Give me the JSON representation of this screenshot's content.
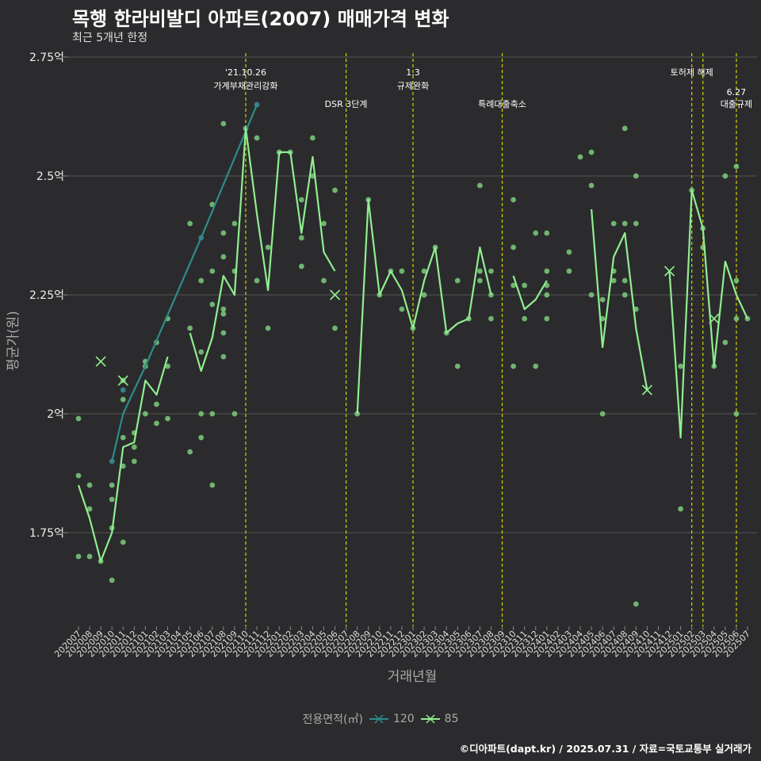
{
  "title": "목행 한라비발디 아파트(2007) 매매가격 변화",
  "subtitle": "최근 5개년 한정",
  "credit": "©디아파트(dapt.kr) / 2025.07.31 / 자료=국토교통부 실거래가",
  "colors": {
    "background": "#2b2b2d",
    "grid": "#555555",
    "vline": "#d4d400",
    "s85": "#90ee90",
    "s120": "#2e8b8b",
    "text": "#ffffff",
    "muted": "#aaaaaa"
  },
  "chart_data": {
    "type": "line",
    "title": "목행 한라비발디 아파트(2007) 매매가격 변화",
    "subtitle": "최근 5개년 한정",
    "xlabel": "거래년월",
    "ylabel": "평균가(원)",
    "ylim": [
      1.55,
      2.77
    ],
    "y_ticks": [
      1.75,
      2.0,
      2.25,
      2.5,
      2.75
    ],
    "y_tick_labels": [
      "1.75억",
      "2억",
      "2.25억",
      "2.5억",
      "2.75억"
    ],
    "grid": true,
    "legend_position": "bottom",
    "legend_title": "전용면적(㎡)",
    "categories": [
      "202007",
      "202008",
      "202009",
      "202010",
      "202011",
      "202012",
      "202101",
      "202102",
      "202103",
      "202104",
      "202105",
      "202106",
      "202107",
      "202108",
      "202109",
      "202110",
      "202111",
      "202112",
      "202201",
      "202202",
      "202203",
      "202204",
      "202205",
      "202206",
      "202207",
      "202208",
      "202209",
      "202210",
      "202211",
      "202212",
      "202301",
      "202302",
      "202303",
      "202304",
      "202305",
      "202306",
      "202307",
      "202308",
      "202309",
      "202310",
      "202311",
      "202312",
      "202401",
      "202402",
      "202403",
      "202404",
      "202405",
      "202406",
      "202407",
      "202408",
      "202409",
      "202410",
      "202411",
      "202412",
      "202501",
      "202502",
      "202503",
      "202504",
      "202505",
      "202506",
      "202507"
    ],
    "series": [
      {
        "name": "120",
        "color": "#2e8b8b",
        "line": [
          [
            "202010",
            1.9
          ],
          [
            "202011",
            2.0
          ],
          [
            "202012",
            2.05
          ],
          [
            "202101",
            2.1
          ],
          [
            "202106",
            2.37
          ],
          [
            "202111",
            2.65
          ]
        ],
        "points": [
          [
            "202010",
            1.9
          ],
          [
            "202011",
            2.05
          ],
          [
            "202106",
            2.37
          ],
          [
            "202111",
            2.65
          ]
        ],
        "single_markers": []
      },
      {
        "name": "85",
        "color": "#90ee90",
        "line_segments": [
          [
            [
              "202007",
              1.85
            ],
            [
              "202008",
              1.78
            ],
            [
              "202009",
              1.69
            ],
            [
              "202010",
              1.75
            ],
            [
              "202011",
              1.93
            ],
            [
              "202012",
              1.94
            ],
            [
              "202101",
              2.07
            ],
            [
              "202102",
              2.04
            ],
            [
              "202103",
              2.12
            ]
          ],
          [
            [
              "202105",
              2.17
            ],
            [
              "202106",
              2.09
            ],
            [
              "202107",
              2.16
            ],
            [
              "202108",
              2.29
            ],
            [
              "202109",
              2.25
            ],
            [
              "202110",
              2.6
            ],
            [
              "202111",
              2.42
            ],
            [
              "202112",
              2.26
            ],
            [
              "202201",
              2.55
            ],
            [
              "202202",
              2.55
            ],
            [
              "202203",
              2.38
            ],
            [
              "202204",
              2.54
            ],
            [
              "202205",
              2.34
            ],
            [
              "202206",
              2.3
            ]
          ],
          [
            [
              "202208",
              2.0
            ],
            [
              "202209",
              2.45
            ],
            [
              "202210",
              2.25
            ],
            [
              "202211",
              2.3
            ],
            [
              "202212",
              2.26
            ],
            [
              "202301",
              2.18
            ],
            [
              "202302",
              2.28
            ],
            [
              "202303",
              2.35
            ],
            [
              "202304",
              2.17
            ],
            [
              "202305",
              2.19
            ],
            [
              "202306",
              2.2
            ],
            [
              "202307",
              2.35
            ],
            [
              "202308",
              2.25
            ]
          ],
          [
            [
              "202310",
              2.29
            ],
            [
              "202311",
              2.22
            ],
            [
              "202312",
              2.24
            ],
            [
              "202401",
              2.28
            ]
          ],
          [
            [
              "202405",
              2.43
            ],
            [
              "202406",
              2.14
            ],
            [
              "202407",
              2.33
            ],
            [
              "202408",
              2.38
            ],
            [
              "202409",
              2.18
            ],
            [
              "202410",
              2.05
            ]
          ],
          [
            [
              "202412",
              2.3
            ],
            [
              "202501",
              1.95
            ],
            [
              "202502",
              2.47
            ],
            [
              "202503",
              2.39
            ],
            [
              "202504",
              2.1
            ],
            [
              "202505",
              2.32
            ],
            [
              "202506",
              2.25
            ],
            [
              "202507",
              2.2
            ]
          ]
        ],
        "points": [
          [
            "202007",
            1.99
          ],
          [
            "202007",
            1.87
          ],
          [
            "202007",
            1.7
          ],
          [
            "202008",
            1.85
          ],
          [
            "202008",
            1.8
          ],
          [
            "202008",
            1.7
          ],
          [
            "202009",
            1.69
          ],
          [
            "202010",
            1.85
          ],
          [
            "202010",
            1.82
          ],
          [
            "202010",
            1.76
          ],
          [
            "202010",
            1.65
          ],
          [
            "202011",
            1.95
          ],
          [
            "202011",
            2.07
          ],
          [
            "202011",
            2.03
          ],
          [
            "202011",
            1.89
          ],
          [
            "202011",
            1.73
          ],
          [
            "202012",
            1.96
          ],
          [
            "202012",
            1.93
          ],
          [
            "202012",
            1.9
          ],
          [
            "202101",
            2.11
          ],
          [
            "202101",
            2.1
          ],
          [
            "202101",
            2.0
          ],
          [
            "202102",
            2.15
          ],
          [
            "202102",
            2.02
          ],
          [
            "202102",
            1.98
          ],
          [
            "202103",
            2.2
          ],
          [
            "202103",
            2.1
          ],
          [
            "202103",
            1.99
          ],
          [
            "202105",
            2.4
          ],
          [
            "202105",
            2.18
          ],
          [
            "202105",
            1.92
          ],
          [
            "202106",
            2.28
          ],
          [
            "202106",
            2.13
          ],
          [
            "202106",
            2.0
          ],
          [
            "202106",
            1.95
          ],
          [
            "202107",
            2.44
          ],
          [
            "202107",
            2.3
          ],
          [
            "202107",
            2.23
          ],
          [
            "202107",
            2.0
          ],
          [
            "202107",
            1.85
          ],
          [
            "202108",
            2.61
          ],
          [
            "202108",
            2.38
          ],
          [
            "202108",
            2.33
          ],
          [
            "202108",
            2.22
          ],
          [
            "202108",
            2.21
          ],
          [
            "202108",
            2.17
          ],
          [
            "202108",
            2.12
          ],
          [
            "202109",
            2.4
          ],
          [
            "202109",
            2.3
          ],
          [
            "202109",
            2.0
          ],
          [
            "202110",
            2.6
          ],
          [
            "202111",
            2.58
          ],
          [
            "202111",
            2.28
          ],
          [
            "202112",
            2.35
          ],
          [
            "202112",
            2.18
          ],
          [
            "202201",
            2.55
          ],
          [
            "202202",
            2.55
          ],
          [
            "202203",
            2.45
          ],
          [
            "202203",
            2.37
          ],
          [
            "202203",
            2.31
          ],
          [
            "202204",
            2.58
          ],
          [
            "202204",
            2.5
          ],
          [
            "202205",
            2.4
          ],
          [
            "202205",
            2.28
          ],
          [
            "202206",
            2.47
          ],
          [
            "202206",
            2.18
          ],
          [
            "202208",
            2.0
          ],
          [
            "202209",
            2.45
          ],
          [
            "202210",
            2.25
          ],
          [
            "202211",
            2.3
          ],
          [
            "202212",
            2.3
          ],
          [
            "202212",
            2.22
          ],
          [
            "202301",
            2.18
          ],
          [
            "202302",
            2.3
          ],
          [
            "202302",
            2.25
          ],
          [
            "202303",
            2.35
          ],
          [
            "202304",
            2.17
          ],
          [
            "202305",
            2.28
          ],
          [
            "202305",
            2.1
          ],
          [
            "202306",
            2.2
          ],
          [
            "202307",
            2.48
          ],
          [
            "202307",
            2.3
          ],
          [
            "202307",
            2.28
          ],
          [
            "202308",
            2.3
          ],
          [
            "202308",
            2.25
          ],
          [
            "202308",
            2.2
          ],
          [
            "202310",
            2.45
          ],
          [
            "202310",
            2.35
          ],
          [
            "202310",
            2.27
          ],
          [
            "202310",
            2.1
          ],
          [
            "202311",
            2.27
          ],
          [
            "202311",
            2.2
          ],
          [
            "202312",
            2.38
          ],
          [
            "202312",
            2.1
          ],
          [
            "202401",
            2.38
          ],
          [
            "202401",
            2.3
          ],
          [
            "202401",
            2.27
          ],
          [
            "202401",
            2.25
          ],
          [
            "202401",
            2.2
          ],
          [
            "202403",
            2.34
          ],
          [
            "202403",
            2.3
          ],
          [
            "202404",
            2.54
          ],
          [
            "202405",
            2.55
          ],
          [
            "202405",
            2.48
          ],
          [
            "202405",
            2.25
          ],
          [
            "202406",
            2.24
          ],
          [
            "202406",
            2.2
          ],
          [
            "202406",
            2.0
          ],
          [
            "202407",
            2.4
          ],
          [
            "202407",
            2.3
          ],
          [
            "202407",
            2.28
          ],
          [
            "202408",
            2.6
          ],
          [
            "202408",
            2.4
          ],
          [
            "202408",
            2.28
          ],
          [
            "202408",
            2.25
          ],
          [
            "202409",
            2.5
          ],
          [
            "202409",
            2.4
          ],
          [
            "202409",
            2.22
          ],
          [
            "202409",
            1.6
          ],
          [
            "202501",
            2.1
          ],
          [
            "202501",
            1.8
          ],
          [
            "202502",
            2.47
          ],
          [
            "202503",
            2.39
          ],
          [
            "202503",
            2.35
          ],
          [
            "202504",
            2.1
          ],
          [
            "202505",
            2.5
          ],
          [
            "202505",
            2.15
          ],
          [
            "202506",
            2.52
          ],
          [
            "202506",
            2.28
          ],
          [
            "202506",
            2.2
          ],
          [
            "202506",
            2.0
          ],
          [
            "202507",
            2.2
          ]
        ],
        "single_markers": [
          [
            "202009",
            2.11
          ],
          [
            "202011",
            2.07
          ],
          [
            "202206",
            2.25
          ],
          [
            "202410",
            2.05
          ],
          [
            "202412",
            2.3
          ],
          [
            "202504",
            2.2
          ]
        ]
      }
    ],
    "events": [
      {
        "x": "202110",
        "lines": [
          "'21.10.26",
          "가계부채관리강화"
        ],
        "level": 1
      },
      {
        "x": "202207",
        "lines": [
          "DSR 3단계"
        ],
        "level": 2
      },
      {
        "x": "202301",
        "lines": [
          "1.3",
          "규제완화"
        ],
        "level": 1
      },
      {
        "x": "202309",
        "lines": [
          "특례대출축소"
        ],
        "level": 2
      },
      {
        "x": "202502",
        "lines": [
          "토허제 해제"
        ],
        "level": 1
      },
      {
        "x": "202503",
        "lines": [],
        "level": 0
      },
      {
        "x": "202506",
        "lines": [
          "6.27",
          "대출규제"
        ],
        "level": 2
      }
    ]
  }
}
